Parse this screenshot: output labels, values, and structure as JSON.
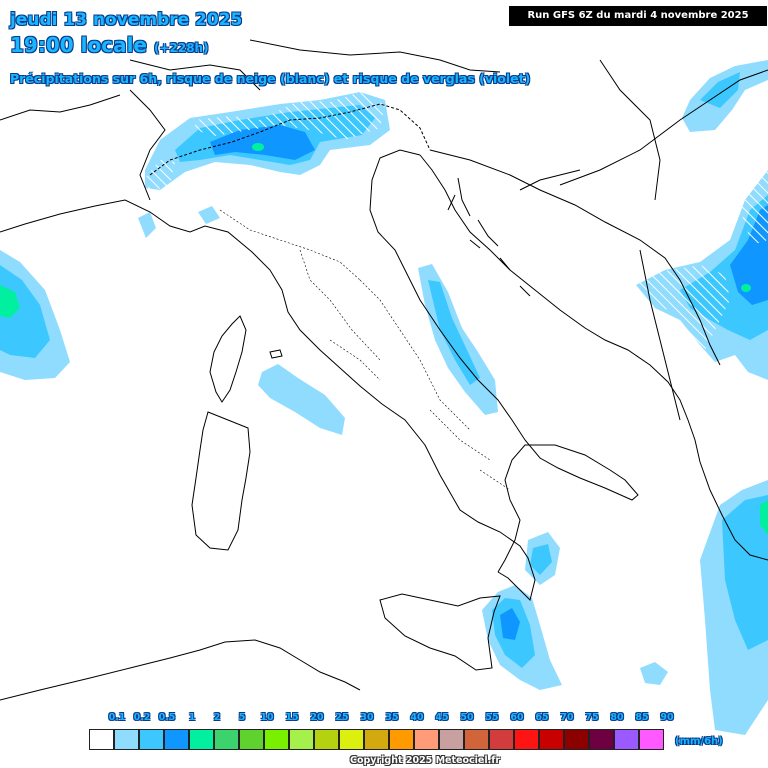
{
  "header": {
    "date_text": "jeudi 13 novembre 2025",
    "time_text": "19:00 locale",
    "offset_text": "(+228h)",
    "description": "Précipitations sur 6h, risque de neige (blanc) et risque de verglas (violet)",
    "run_info": "Run GFS 6Z du mardi 4 novembre 2025"
  },
  "legend": {
    "ticks": [
      "0.1",
      "0.2",
      "0.5",
      "1",
      "2",
      "5",
      "10",
      "15",
      "20",
      "25",
      "30",
      "35",
      "40",
      "45",
      "50",
      "55",
      "60",
      "65",
      "70",
      "75",
      "80",
      "85",
      "90"
    ],
    "colors": [
      "#ffffff",
      "#8fdcff",
      "#3cc8ff",
      "#0f96ff",
      "#00f0a0",
      "#3cd26e",
      "#5fd22d",
      "#78f000",
      "#a5f04b",
      "#b4d20f",
      "#dcf00f",
      "#d2aa0f",
      "#ff9b00",
      "#ff9b78",
      "#c8a0a0",
      "#d2643c",
      "#d23c3c",
      "#ff1414",
      "#c80000",
      "#8c0000",
      "#6e0041",
      "#9b5aff",
      "#ff5aff"
    ],
    "unit": "(mm/6h)"
  },
  "footer": {
    "copyright": "Copyright 2025 Meteociel.fr"
  },
  "precip_colors": {
    "light": "#8fdcff",
    "medium": "#3cc8ff",
    "heavy": "#0f96ff",
    "very_heavy": "#00f0a0"
  }
}
